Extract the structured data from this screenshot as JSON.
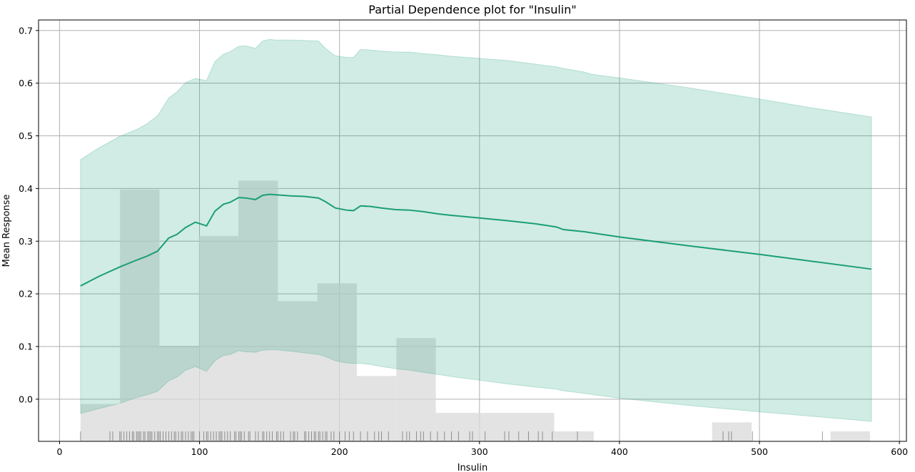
{
  "chart_data": {
    "type": "line",
    "title": "Partial Dependence plot for \"Insulin\"",
    "xlabel": "Insulin",
    "ylabel": "Mean Response",
    "xlim": [
      -15,
      605
    ],
    "ylim": [
      -0.08,
      0.72
    ],
    "xticks": [
      0,
      100,
      200,
      300,
      400,
      500,
      600
    ],
    "yticks": [
      0.0,
      0.1,
      0.2,
      0.3,
      0.4,
      0.5,
      0.6,
      0.7
    ],
    "xtick_labels": [
      "0",
      "100",
      "200",
      "300",
      "400",
      "500",
      "600"
    ],
    "ytick_labels": [
      "0.0",
      "0.1",
      "0.2",
      "0.3",
      "0.4",
      "0.5",
      "0.6",
      "0.7"
    ],
    "grid": true,
    "colors": {
      "line": "#1b9e77",
      "band": "#1b9e77",
      "hist": "#d9d9d9",
      "rug": "#555555"
    },
    "series": [
      {
        "x": [
          15,
          28,
          43,
          55,
          62,
          70,
          78,
          84,
          90,
          97,
          105,
          111,
          117,
          122,
          128,
          133,
          140,
          145,
          150,
          155,
          165,
          175,
          185,
          190,
          197,
          205,
          210,
          215,
          222,
          230,
          240,
          250,
          260,
          270,
          280,
          300,
          320,
          340,
          355,
          360,
          375,
          380,
          400,
          450,
          500,
          540,
          580
        ],
        "y": [
          0.215,
          0.233,
          0.251,
          0.264,
          0.271,
          0.281,
          0.306,
          0.313,
          0.326,
          0.336,
          0.329,
          0.357,
          0.37,
          0.374,
          0.383,
          0.382,
          0.379,
          0.387,
          0.389,
          0.388,
          0.386,
          0.385,
          0.382,
          0.375,
          0.363,
          0.359,
          0.358,
          0.367,
          0.366,
          0.363,
          0.36,
          0.359,
          0.356,
          0.352,
          0.349,
          0.344,
          0.339,
          0.333,
          0.327,
          0.322,
          0.318,
          0.316,
          0.308,
          0.291,
          0.275,
          0.261,
          0.247
        ],
        "lower": [
          -0.027,
          -0.018,
          -0.008,
          0.003,
          0.008,
          0.015,
          0.035,
          0.042,
          0.055,
          0.062,
          0.053,
          0.073,
          0.083,
          0.085,
          0.092,
          0.09,
          0.089,
          0.093,
          0.094,
          0.094,
          0.091,
          0.088,
          0.085,
          0.081,
          0.073,
          0.069,
          0.068,
          0.068,
          0.066,
          0.062,
          0.058,
          0.055,
          0.051,
          0.047,
          0.043,
          0.036,
          0.029,
          0.023,
          0.019,
          0.016,
          0.011,
          0.009,
          0.002,
          -0.012,
          -0.024,
          -0.033,
          -0.042
        ],
        "upper": [
          0.455,
          0.477,
          0.499,
          0.512,
          0.522,
          0.538,
          0.572,
          0.584,
          0.601,
          0.609,
          0.605,
          0.641,
          0.655,
          0.66,
          0.67,
          0.671,
          0.666,
          0.68,
          0.683,
          0.682,
          0.682,
          0.681,
          0.68,
          0.666,
          0.652,
          0.649,
          0.649,
          0.664,
          0.663,
          0.661,
          0.659,
          0.659,
          0.656,
          0.654,
          0.651,
          0.647,
          0.643,
          0.636,
          0.631,
          0.628,
          0.621,
          0.617,
          0.61,
          0.591,
          0.57,
          0.552,
          0.536
        ]
      }
    ],
    "histogram": {
      "bins": [
        15,
        43.2,
        71.4,
        99.6,
        127.8,
        156,
        184.2,
        212.4,
        240.6,
        268.8,
        297,
        325.2,
        353.4,
        381.6,
        409.8,
        438,
        466.2,
        494.4,
        522.6,
        550.8,
        579
      ],
      "heights": [
        -0.009,
        0.398,
        0.099,
        0.31,
        0.415,
        0.186,
        0.22,
        0.044,
        0.116,
        -0.026,
        -0.026,
        -0.026,
        -0.061,
        -0.08,
        -0.08,
        -0.08,
        -0.044,
        -0.08,
        -0.08,
        -0.061
      ]
    },
    "rug": [
      15,
      36,
      38,
      43,
      44,
      46,
      48,
      50,
      52,
      53,
      55,
      56,
      57,
      58,
      60,
      61,
      63,
      64,
      65,
      66,
      68,
      70,
      71,
      72,
      74,
      76,
      78,
      80,
      82,
      83,
      85,
      87,
      88,
      90,
      92,
      94,
      95,
      96,
      100,
      103,
      105,
      106,
      108,
      110,
      112,
      114,
      115,
      116,
      118,
      120,
      122,
      125,
      126,
      128,
      129,
      130,
      132,
      135,
      136,
      140,
      142,
      145,
      146,
      148,
      150,
      152,
      155,
      156,
      158,
      160,
      165,
      167,
      168,
      170,
      175,
      176,
      178,
      180,
      182,
      183,
      185,
      186,
      188,
      190,
      191,
      194,
      196,
      200,
      204,
      207,
      210,
      215,
      220,
      225,
      228,
      230,
      235,
      245,
      248,
      250,
      255,
      258,
      260,
      265,
      270,
      275,
      280,
      285,
      293,
      295,
      304,
      318,
      321,
      328,
      335,
      342,
      345,
      352,
      370,
      474,
      478,
      480,
      495,
      545
    ]
  }
}
